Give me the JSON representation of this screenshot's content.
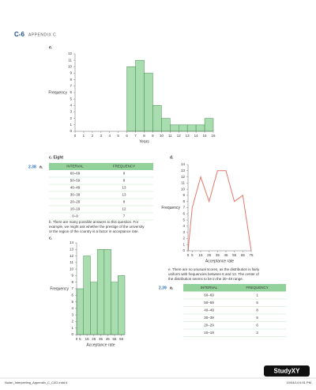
{
  "header": {
    "page": "C-6",
    "title": "APPENDIX C"
  },
  "labels": {
    "e1": "e.",
    "c1": "c. Eight",
    "d": "d.",
    "ex38": "2.38",
    "a38": "a.",
    "c2": "c.",
    "ex39": "2.39",
    "a39": "a."
  },
  "paragraphs": {
    "b": [
      "b. There are many possible answers to this question. For",
      "example, we might ask whether the prestige of the university",
      "or the region of the country is a factor in acceptance rate."
    ],
    "e": [
      "e. There are no unusual scores, as the distribution is fairly",
      "uniform with frequencies between 6 and 13. The center of",
      "the distribution seems to be in the 30–49 range."
    ]
  },
  "tables": [
    {
      "columns": [
        "INTERVAL",
        "FREQUENCY"
      ],
      "rows": [
        [
          "60–69",
          9
        ],
        [
          "50–59",
          8
        ],
        [
          "40–49",
          13
        ],
        [
          "30–39",
          13
        ],
        [
          "20–29",
          8
        ],
        [
          "10–19",
          12
        ],
        [
          "0–9",
          7
        ]
      ]
    },
    {
      "columns": [
        "INTERVAL",
        "FREQUENCY"
      ],
      "rows": [
        [
          "60–69",
          1
        ],
        [
          "50–59",
          5
        ],
        [
          "40–49",
          8
        ],
        [
          "30–39",
          5
        ],
        [
          "20–29",
          6
        ],
        [
          "10–19",
          2
        ]
      ]
    }
  ],
  "chart_data": [
    {
      "type": "histogram",
      "xlabel": "Years",
      "ylabel": "Frequency",
      "color": "#a9dcae",
      "bins": [
        6,
        7,
        8,
        9,
        10,
        11,
        12,
        13,
        14,
        15,
        16
      ],
      "values": [
        10,
        11,
        9,
        4,
        2,
        1,
        1,
        1,
        1,
        2
      ],
      "xlim": [
        0,
        16
      ],
      "xticks": [
        0,
        1,
        2,
        3,
        4,
        5,
        6,
        7,
        8,
        9,
        10,
        11,
        12,
        13,
        14,
        15,
        16
      ],
      "ylim": [
        0,
        12
      ],
      "yticks": [
        0,
        1,
        2,
        3,
        4,
        5,
        6,
        7,
        8,
        9,
        10,
        11,
        12
      ]
    },
    {
      "type": "histogram",
      "xlabel": "Acceptance rate",
      "ylabel": "Frequency",
      "color": "#a9dcae",
      "bins": [
        0,
        10,
        20,
        30,
        40,
        50,
        60,
        70
      ],
      "values": [
        7,
        12,
        8,
        13,
        13,
        8,
        9
      ],
      "xlim": [
        0,
        70
      ],
      "xticks": [
        0,
        5,
        15,
        25,
        35,
        45,
        55,
        65
      ],
      "ylim": [
        0,
        14
      ],
      "yticks": [
        0,
        1,
        2,
        3,
        4,
        5,
        6,
        7,
        8,
        9,
        10,
        11,
        12,
        13,
        14
      ]
    },
    {
      "type": "line",
      "xlabel": "Acceptance rate",
      "ylabel": "Frequency",
      "color": "#e8776a",
      "x": [
        0,
        5,
        15,
        25,
        35,
        45,
        55,
        65,
        75
      ],
      "values": [
        0,
        7,
        12,
        8,
        13,
        13,
        8,
        9,
        0
      ],
      "xlim": [
        0,
        75
      ],
      "xticks": [
        0,
        5,
        15,
        25,
        35,
        45,
        55,
        65,
        75
      ],
      "ylim": [
        0,
        14
      ],
      "yticks": [
        0,
        1,
        2,
        3,
        4,
        5,
        6,
        7,
        8,
        9,
        10,
        11,
        12,
        13,
        14
      ]
    }
  ],
  "footer": {
    "file": "Nolan_Interpreting_Appendix_C_C4G.indd 6",
    "date": "10/04/14 6:51 PM",
    "brand": "StudyXY"
  }
}
